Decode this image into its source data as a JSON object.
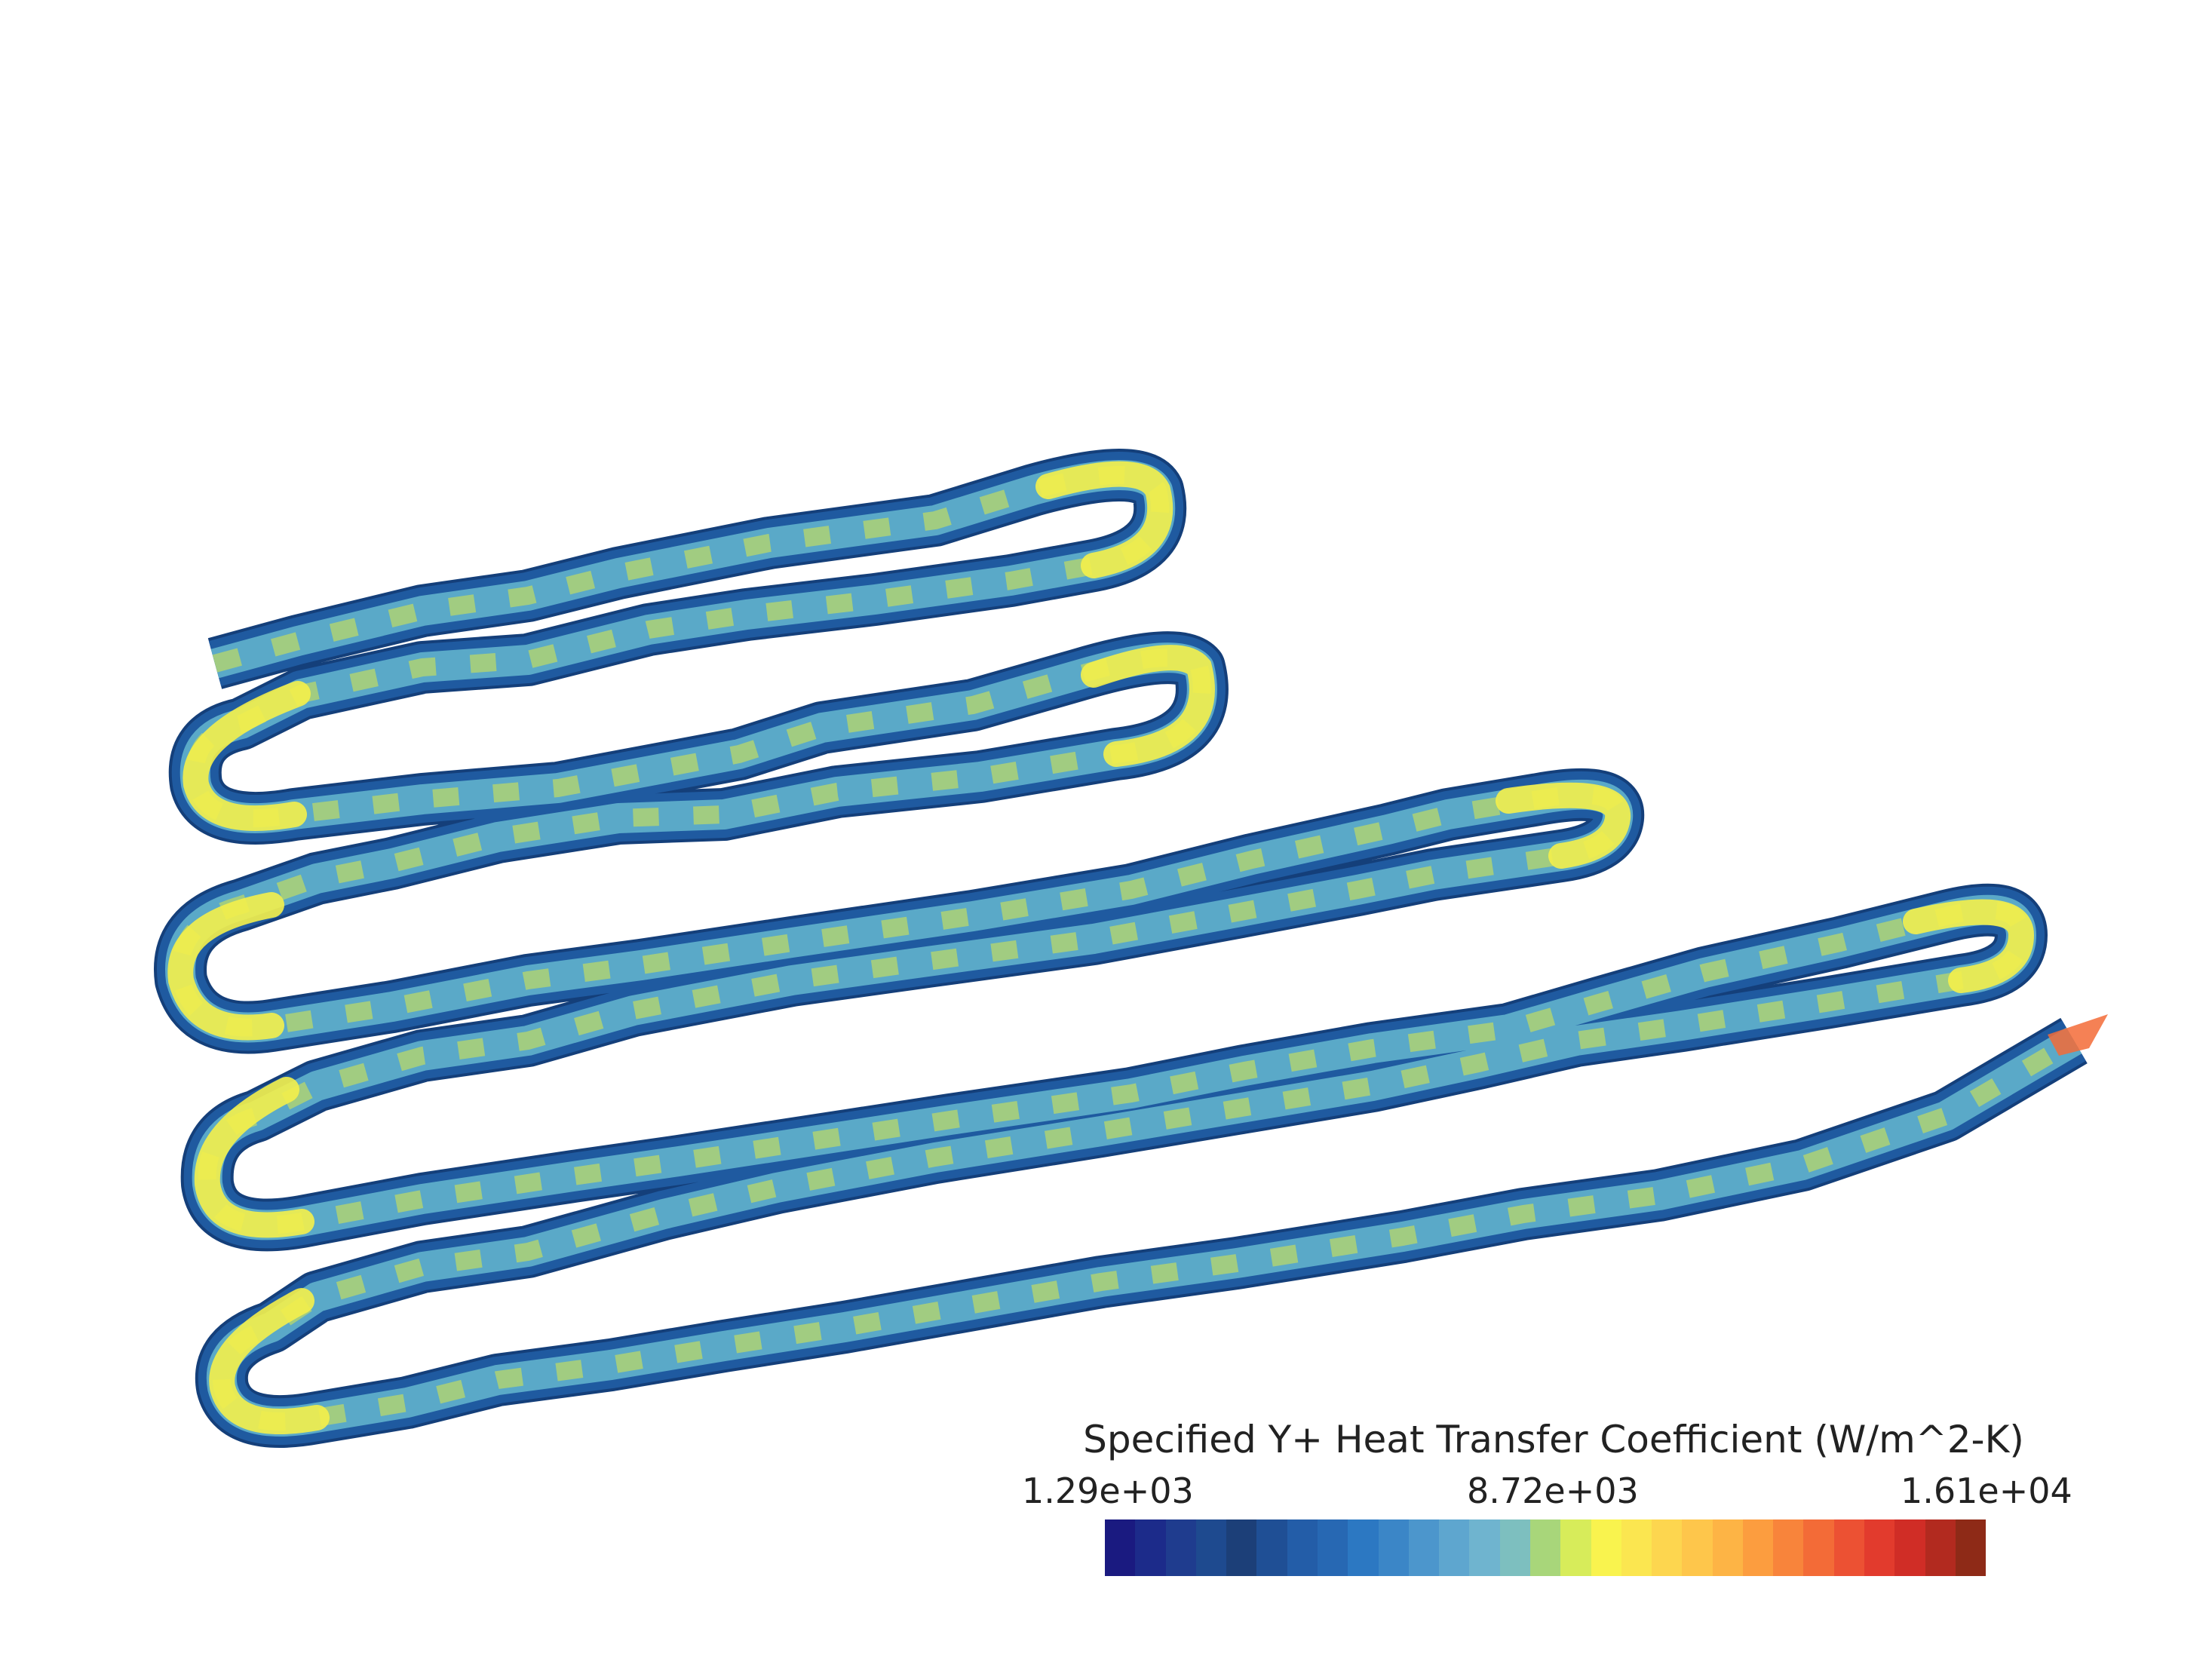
{
  "legend": {
    "title": "Specified Y+ Heat Transfer Coefficient (W/m^2-K)",
    "min_label": "1.29e+03",
    "mid_label": "8.72e+03",
    "max_label": "1.61e+04",
    "min": 1290,
    "mid": 8720,
    "max": 16100,
    "colors": [
      "#1a1a80",
      "#1c2b8a",
      "#1f3c8e",
      "#1e4a8f",
      "#1c3f78",
      "#1f4f95",
      "#235da8",
      "#2768b3",
      "#2c78c2",
      "#3b86c7",
      "#4c96cc",
      "#5ea6cf",
      "#6fb4cf",
      "#7dbfbf",
      "#a8d67a",
      "#d7ec5a",
      "#f9f34e",
      "#fbe650",
      "#fdd64f",
      "#fec64b",
      "#fdb445",
      "#fc9d3f",
      "#f8843b",
      "#f36b37",
      "#ec5133",
      "#e23b2d",
      "#d02d26",
      "#b22a1f",
      "#8e2a17"
    ]
  },
  "channel": {
    "edge_color": "#1f5aa0",
    "body_color": "#5aa9c8",
    "hotspot_color": "#f4f04a",
    "mid_color": "#b9d86a",
    "outlet_color": "#f36b37"
  }
}
